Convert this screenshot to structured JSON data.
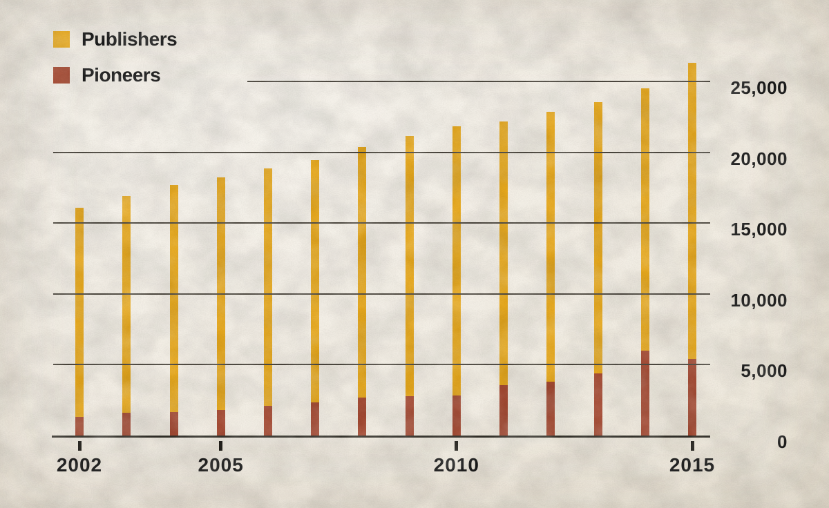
{
  "legend": {
    "items": [
      {
        "label": "Publishers",
        "color": "#E6A81E"
      },
      {
        "label": "Pioneers",
        "color": "#A54B34"
      }
    ]
  },
  "axes": {
    "y_tick_labels": [
      "0",
      "5,000",
      "10,000",
      "15,000",
      "20,000",
      "25,000"
    ],
    "x_tick_labels": [
      "2002",
      "2005",
      "2010",
      "2015"
    ]
  },
  "chart_data": {
    "type": "bar",
    "title": "",
    "xlabel": "",
    "ylabel": "",
    "categories": [
      2002,
      2003,
      2004,
      2005,
      2006,
      2007,
      2008,
      2009,
      2010,
      2011,
      2012,
      2013,
      2014,
      2015
    ],
    "series": [
      {
        "name": "Publishers",
        "color": "#E6A81E",
        "values": [
          16100,
          16900,
          17700,
          18250,
          18850,
          19450,
          20350,
          21150,
          21850,
          22200,
          22850,
          23550,
          24500,
          26300
        ]
      },
      {
        "name": "Pioneers",
        "color": "#A54B34",
        "values": [
          1300,
          1600,
          1650,
          1800,
          2100,
          2350,
          2700,
          2800,
          2850,
          3550,
          3800,
          4400,
          6000,
          5400
        ]
      }
    ],
    "yticks": [
      0,
      5000,
      10000,
      15000,
      20000,
      25000
    ],
    "xticks": [
      2002,
      2005,
      2010,
      2015
    ],
    "ylim": [
      0,
      27500
    ],
    "grid": true,
    "gridlines_over_bars": true,
    "legend_position": "top-left",
    "y_axis_side": "right",
    "bar_style": "Pioneers drawn overlaid at the base of the Publishers bars (thin columns)"
  },
  "colors": {
    "background": "#EFE9DE",
    "grid": "#4B463D",
    "axis": "#34312A",
    "tick": "#211F1A",
    "text": "#191919"
  }
}
